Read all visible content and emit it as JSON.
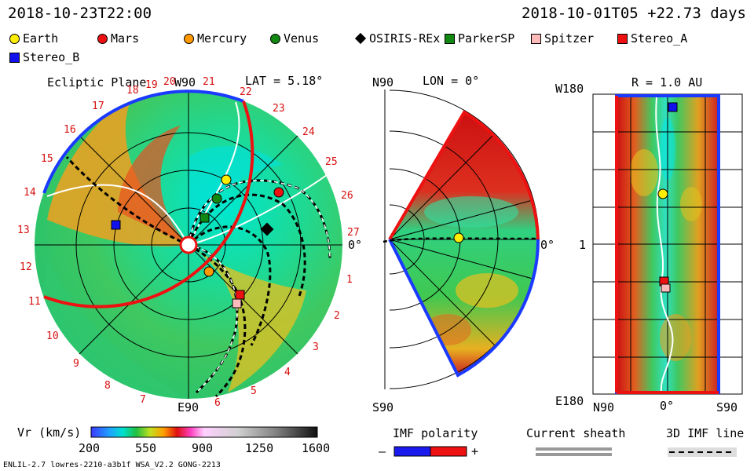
{
  "header": {
    "date_left": "2018-10-23T22:00",
    "date_right": "2018-10-01T05 +22.73 days"
  },
  "legend": [
    {
      "name": "Earth",
      "shape": "circle",
      "color": "#ffee00"
    },
    {
      "name": "Mars",
      "shape": "circle",
      "color": "#ee1111"
    },
    {
      "name": "Mercury",
      "shape": "circle",
      "color": "#ff9900"
    },
    {
      "name": "Venus",
      "shape": "circle",
      "color": "#118811"
    },
    {
      "name": "OSIRIS-REx",
      "shape": "diamond",
      "color": "#000000"
    },
    {
      "name": "ParkerSP",
      "shape": "square",
      "color": "#118811"
    },
    {
      "name": "Spitzer",
      "shape": "square",
      "color": "#ffbbbb"
    },
    {
      "name": "Stereo_A",
      "shape": "square",
      "color": "#ee1111"
    },
    {
      "name": "Stereo_B",
      "shape": "square",
      "color": "#1111ee"
    }
  ],
  "ecliptic": {
    "title": "Ecliptic Plane",
    "top_label": "W90",
    "lat_label": "LAT = 5.18°",
    "right_label": "0°",
    "bottom_label": "E90",
    "ticks": [
      "20",
      "21",
      "22",
      "23",
      "24",
      "25",
      "26",
      "27",
      "1",
      "2",
      "3",
      "4",
      "5",
      "6",
      "7",
      "8",
      "9",
      "10",
      "11",
      "12",
      "13",
      "14",
      "15",
      "16",
      "17",
      "18",
      "19"
    ]
  },
  "meridional": {
    "top_label": "N90",
    "lon_label": "LON = 0°",
    "right_label": "0°",
    "bottom_label": "S90"
  },
  "radial": {
    "top_left": "W180",
    "r_label": "R = 1.0 AU",
    "left_mid": "1",
    "bottom_left": "E180",
    "x_labels": [
      "N90",
      "0°",
      "S90"
    ]
  },
  "colorbar": {
    "label": "Vr (km/s)",
    "ticks": [
      "200",
      "550",
      "900",
      "1250",
      "1600"
    ],
    "range": [
      200,
      1600
    ]
  },
  "imf": {
    "label": "IMF polarity",
    "minus": "–",
    "plus": "+",
    "sheath_label": "Current sheath",
    "line_label": "3D IMF line"
  },
  "footer": {
    "model": "ENLIL-2.7 lowres-2210-a3b1f WSA_V2.2 GONG-2213"
  },
  "chart_data": {
    "type": "heatmap",
    "quantity": "Vr (km/s)",
    "value_range": [
      200,
      1600
    ],
    "bodies": [
      {
        "name": "Earth",
        "r_au": 1.0,
        "lon_deg": 0
      },
      {
        "name": "Mars",
        "r_au": 1.4
      },
      {
        "name": "Mercury",
        "r_au": 0.4
      },
      {
        "name": "Venus",
        "r_au": 0.72
      },
      {
        "name": "OSIRIS-REx",
        "r_au": 1.0
      },
      {
        "name": "ParkerSP",
        "r_au": 0.5
      },
      {
        "name": "Spitzer",
        "r_au": 1.0
      },
      {
        "name": "Stereo_A",
        "r_au": 1.0
      },
      {
        "name": "Stereo_B",
        "r_au": 1.0
      }
    ]
  }
}
